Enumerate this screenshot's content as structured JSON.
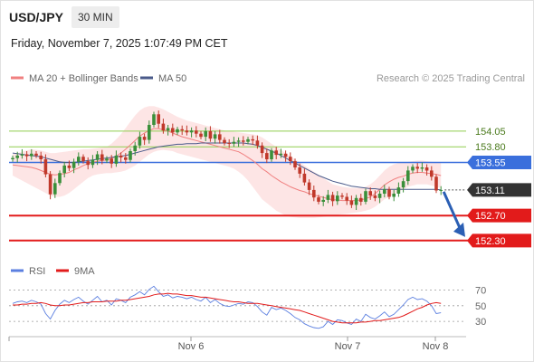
{
  "header": {
    "symbol": "USD/JPY",
    "timeframe": "30 MIN",
    "datetime": "Friday, November 7, 2025 1:07:49 PM CET"
  },
  "legend": {
    "ma20_label": "MA 20 + Bollinger Bands",
    "ma50_label": "MA 50",
    "credit": "Research © 2025 Trading Central"
  },
  "rsi_legend": {
    "rsi_label": "RSI",
    "ma_label": "9MA"
  },
  "colors": {
    "ma20": "#f08080",
    "ma50": "#4a5a8a",
    "band_fill": "#fde0e0",
    "bull": "#3a8f3a",
    "bear": "#c0392b",
    "green_level": "#8fce4f",
    "pivot_level": "#3a6fdc",
    "red_level": "#e21b1b",
    "arrow": "#2b5fb4",
    "rsi": "#5b7fe0",
    "rsi_ma": "#e21b1b"
  },
  "chart_data": [
    {
      "type": "candlestick",
      "x_labels": [
        "Nov 6",
        "Nov 7",
        "Nov 8"
      ],
      "y_range": [
        151.95,
        154.7
      ],
      "levels": [
        {
          "value": 154.05,
          "label": "154.05",
          "style": "resistance"
        },
        {
          "value": 153.8,
          "label": "153.80",
          "style": "resistance"
        },
        {
          "value": 153.55,
          "label": "153.55",
          "style": "pivot"
        },
        {
          "value": 153.11,
          "label": "153.11",
          "style": "last"
        },
        {
          "value": 152.7,
          "label": "152.70",
          "style": "support"
        },
        {
          "value": 152.3,
          "label": "152.30",
          "style": "support"
        }
      ],
      "forecast": {
        "from": 153.11,
        "to": 152.3
      },
      "series": [
        {
          "name": "MA 20 + Bollinger Bands"
        },
        {
          "name": "MA 50"
        }
      ],
      "close": [
        153.62,
        153.66,
        153.68,
        153.65,
        153.69,
        153.66,
        153.6,
        153.36,
        153.04,
        153.22,
        153.38,
        153.5,
        153.46,
        153.56,
        153.64,
        153.57,
        153.51,
        153.59,
        153.68,
        153.58,
        153.61,
        153.53,
        153.66,
        153.63,
        153.59,
        153.73,
        153.82,
        153.96,
        153.91,
        154.15,
        154.32,
        154.17,
        154.06,
        154.1,
        154.03,
        154.08,
        154.06,
        154.03,
        154.06,
        154.01,
        153.96,
        154.05,
        153.93,
        154.0,
        153.91,
        153.86,
        153.85,
        153.88,
        153.9,
        153.88,
        153.92,
        153.9,
        153.82,
        153.7,
        153.6,
        153.74,
        153.67,
        153.69,
        153.64,
        153.57,
        153.47,
        153.37,
        153.23,
        153.11,
        152.99,
        152.92,
        152.95,
        153.03,
        152.93,
        153.02,
        153.0,
        152.94,
        152.87,
        152.98,
        152.92,
        153.09,
        153.02,
        152.98,
        153.05,
        153.12,
        153.0,
        153.05,
        153.15,
        153.25,
        153.42,
        153.48,
        153.45,
        153.47,
        153.42,
        153.32,
        153.1,
        153.11
      ],
      "bollinger_upper": [
        153.68,
        153.7,
        153.72,
        153.74,
        153.76,
        153.75,
        153.74,
        153.72,
        153.7,
        153.7,
        153.71,
        153.72,
        153.73,
        153.74,
        153.75,
        153.76,
        153.76,
        153.77,
        153.78,
        153.79,
        153.8,
        153.85,
        153.92,
        154.0,
        154.1,
        154.2,
        154.3,
        154.38,
        154.43,
        154.45,
        154.45,
        154.43,
        154.4,
        154.36,
        154.32,
        154.28,
        154.25,
        154.22,
        154.2,
        154.18,
        154.16,
        154.14,
        154.12,
        154.1,
        154.08,
        154.06,
        154.05,
        154.04,
        154.03,
        154.02,
        154.01,
        154.0,
        153.98,
        153.95,
        153.9,
        153.85,
        153.8,
        153.75,
        153.7,
        153.65,
        153.6,
        153.55,
        153.5,
        153.45,
        153.4,
        153.35,
        153.3,
        153.25,
        153.2,
        153.18,
        153.16,
        153.15,
        153.14,
        153.14,
        153.14,
        153.16,
        153.2,
        153.26,
        153.34,
        153.42,
        153.48,
        153.52,
        153.54,
        153.55,
        153.56,
        153.57,
        153.58,
        153.58,
        153.57,
        153.56,
        153.55,
        153.54
      ],
      "bollinger_lower": [
        153.34,
        153.3,
        153.26,
        153.22,
        153.18,
        153.14,
        153.1,
        153.06,
        153.02,
        153.0,
        153.0,
        153.02,
        153.06,
        153.12,
        153.18,
        153.24,
        153.3,
        153.34,
        153.36,
        153.37,
        153.38,
        153.38,
        153.39,
        153.4,
        153.42,
        153.46,
        153.5,
        153.56,
        153.62,
        153.68,
        153.72,
        153.74,
        153.75,
        153.74,
        153.73,
        153.7,
        153.68,
        153.66,
        153.64,
        153.62,
        153.6,
        153.58,
        153.56,
        153.54,
        153.52,
        153.5,
        153.48,
        153.45,
        153.4,
        153.34,
        153.26,
        153.16,
        153.06,
        152.96,
        152.9,
        152.84,
        152.78,
        152.74,
        152.7,
        152.68,
        152.67,
        152.66,
        152.66,
        152.66,
        152.66,
        152.67,
        152.68,
        152.69,
        152.7,
        152.71,
        152.72,
        152.73,
        152.74,
        152.75,
        152.76,
        152.78,
        152.8,
        152.84,
        152.9,
        152.96,
        153.0,
        153.04,
        153.08,
        153.12,
        153.16,
        153.18,
        153.2,
        153.2,
        153.2,
        153.18,
        153.16,
        153.14
      ],
      "ma20": [
        153.51,
        153.5,
        153.49,
        153.48,
        153.47,
        153.45,
        153.42,
        153.39,
        153.36,
        153.35,
        153.36,
        153.37,
        153.39,
        153.43,
        153.46,
        153.5,
        153.53,
        153.55,
        153.57,
        153.58,
        153.59,
        153.61,
        153.65,
        153.7,
        153.76,
        153.83,
        153.9,
        153.97,
        154.02,
        154.06,
        154.09,
        154.09,
        154.07,
        154.05,
        154.02,
        153.99,
        153.96,
        153.94,
        153.92,
        153.9,
        153.88,
        153.86,
        153.84,
        153.82,
        153.8,
        153.78,
        153.76,
        153.74,
        153.72,
        153.68,
        153.63,
        153.58,
        153.52,
        153.45,
        153.4,
        153.34,
        153.29,
        153.24,
        153.2,
        153.16,
        153.13,
        153.1,
        153.08,
        153.05,
        153.03,
        153.01,
        152.99,
        152.97,
        152.95,
        152.95,
        152.94,
        152.94,
        152.94,
        152.94,
        152.95,
        152.97,
        153.0,
        153.05,
        153.12,
        153.19,
        153.24,
        153.28,
        153.31,
        153.33,
        153.36,
        153.38,
        153.39,
        153.39,
        153.38,
        153.37,
        153.36,
        153.34
      ],
      "ma50": [
        153.7,
        153.69,
        153.68,
        153.67,
        153.66,
        153.65,
        153.64,
        153.62,
        153.6,
        153.58,
        153.56,
        153.55,
        153.55,
        153.55,
        153.56,
        153.57,
        153.58,
        153.59,
        153.6,
        153.61,
        153.62,
        153.63,
        153.64,
        153.65,
        153.66,
        153.68,
        153.7,
        153.72,
        153.74,
        153.76,
        153.78,
        153.8,
        153.81,
        153.82,
        153.83,
        153.84,
        153.84,
        153.85,
        153.85,
        153.85,
        153.86,
        153.86,
        153.86,
        153.86,
        153.86,
        153.86,
        153.86,
        153.86,
        153.86,
        153.86,
        153.85,
        153.84,
        153.82,
        153.79,
        153.76,
        153.73,
        153.7,
        153.66,
        153.62,
        153.58,
        153.54,
        153.5,
        153.46,
        153.42,
        153.38,
        153.34,
        153.31,
        153.28,
        153.25,
        153.23,
        153.21,
        153.19,
        153.17,
        153.16,
        153.15,
        153.14,
        153.13,
        153.13,
        153.12,
        153.12,
        153.12,
        153.12,
        153.12,
        153.12,
        153.12,
        153.12,
        153.12,
        153.12,
        153.12,
        153.12,
        153.12,
        153.11
      ]
    },
    {
      "type": "line",
      "title": "RSI",
      "y_ticks": [
        30,
        50,
        70
      ],
      "y_range": [
        15,
        80
      ],
      "series": [
        {
          "name": "RSI",
          "values": [
            53,
            55,
            56,
            54,
            57,
            55,
            52,
            40,
            33,
            44,
            52,
            57,
            54,
            58,
            61,
            56,
            52,
            57,
            62,
            55,
            57,
            51,
            59,
            57,
            54,
            61,
            64,
            68,
            64,
            71,
            75,
            68,
            62,
            64,
            60,
            62,
            61,
            59,
            61,
            58,
            56,
            61,
            54,
            58,
            53,
            50,
            49,
            51,
            53,
            52,
            55,
            54,
            49,
            42,
            38,
            48,
            45,
            47,
            44,
            40,
            35,
            32,
            27,
            24,
            22,
            21,
            23,
            30,
            26,
            32,
            31,
            28,
            26,
            33,
            30,
            39,
            35,
            33,
            37,
            42,
            36,
            39,
            45,
            51,
            58,
            61,
            58,
            59,
            56,
            50,
            40,
            41
          ]
        },
        {
          "name": "9MA",
          "values": [
            51,
            51,
            52,
            52,
            53,
            53,
            54,
            53,
            51,
            50,
            50,
            51,
            51,
            52,
            53,
            54,
            54,
            55,
            55,
            55,
            56,
            56,
            56,
            57,
            57,
            58,
            59,
            60,
            61,
            62,
            64,
            65,
            65,
            66,
            65,
            65,
            64,
            63,
            63,
            62,
            61,
            61,
            60,
            59,
            58,
            57,
            56,
            55,
            55,
            54,
            53,
            53,
            53,
            52,
            51,
            50,
            49,
            48,
            47,
            46,
            45,
            44,
            42,
            40,
            38,
            36,
            34,
            32,
            30,
            29,
            28,
            28,
            28,
            28,
            29,
            29,
            30,
            31,
            31,
            32,
            33,
            34,
            35,
            37,
            40,
            43,
            46,
            48,
            51,
            53,
            54,
            53
          ]
        }
      ]
    }
  ]
}
